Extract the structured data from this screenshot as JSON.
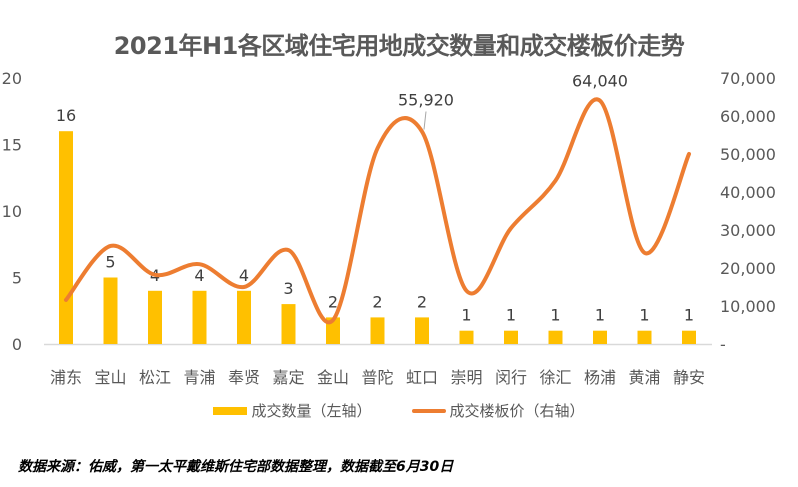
{
  "title": "2021年H1各区域住宅用地成交数量和成交楼板价走势",
  "legend": {
    "bar_label": "成交数量（左轴）",
    "line_label": "成交楼板价（右轴）"
  },
  "source": "数据来源：佑威，第一太平戴维斯住宅部数据整理，数据截至6月30日",
  "colors": {
    "bar": "#FFC000",
    "line": "#ED7D31",
    "axis": "#D9D9D9",
    "text": "#595959"
  },
  "left_axis_ticks": [
    "0",
    "5",
    "10",
    "15",
    "20"
  ],
  "right_axis_ticks": [
    "-",
    "10,000",
    "20,000",
    "30,000",
    "40,000",
    "50,000",
    "60,000",
    "70,000"
  ],
  "line_labels": {
    "虹口": "55,920",
    "杨浦": "64,040"
  },
  "chart_data": {
    "type": "bar+line",
    "title": "2021年H1各区域住宅用地成交数量和成交楼板价走势",
    "categories": [
      "浦东",
      "宝山",
      "松江",
      "青浦",
      "奉贤",
      "嘉定",
      "金山",
      "普陀",
      "虹口",
      "崇明",
      "闵行",
      "徐汇",
      "杨浦",
      "黄浦",
      "静安"
    ],
    "series": [
      {
        "name": "成交数量（左轴）",
        "type": "bar",
        "axis": "left",
        "values": [
          16,
          5,
          4,
          4,
          4,
          3,
          2,
          2,
          2,
          1,
          1,
          1,
          1,
          1,
          1
        ]
      },
      {
        "name": "成交楼板价（右轴）",
        "type": "line",
        "axis": "right",
        "smooth": true,
        "values": [
          11600,
          25800,
          18200,
          21000,
          15000,
          24700,
          6300,
          51500,
          55920,
          14000,
          30500,
          43000,
          64040,
          24000,
          50000
        ]
      }
    ],
    "left_ylim": [
      0,
      20
    ],
    "right_ylim": [
      0,
      70000
    ],
    "xlabel": "",
    "ylabel_left": "",
    "ylabel_right": "",
    "grid": false,
    "legend_position": "bottom"
  }
}
